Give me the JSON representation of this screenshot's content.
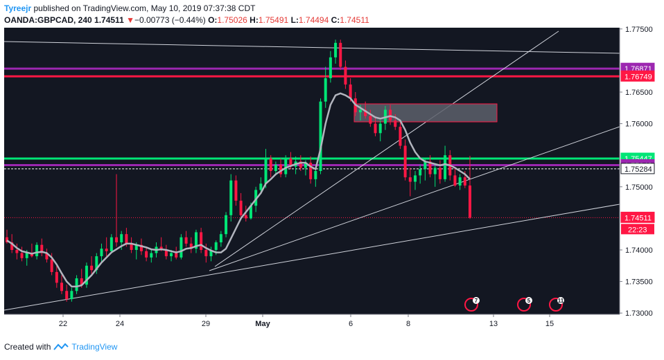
{
  "header": {
    "author": "Tyreejr",
    "published_text": " published on TradingView.com, May 10, 2019 07:37:38 CDT",
    "symbol": "OANDA:GBPCAD, 240",
    "last": "1.74511",
    "down_arrow": "▼",
    "change": "−0.00773 (−0.44%)",
    "open_label": "O:",
    "open": "1.75026",
    "high_label": "H:",
    "high": "1.75491",
    "low_label": "L:",
    "low": "1.74494",
    "close_label": "C:",
    "close": "1.74511"
  },
  "footer": {
    "created_with": "Created with",
    "brand": "TradingView"
  },
  "colors": {
    "background": "#131722",
    "up": "#00e676",
    "down": "#ff1744",
    "ma": "#b2b5be",
    "purple": "#9c27b0",
    "red_level": "#ff1744",
    "green_level": "#00e676",
    "trend": "#d1d4dc",
    "box": "#5d606b"
  },
  "chart_data": {
    "type": "candlestick",
    "ylim": [
      1.7298,
      1.7752
    ],
    "ytick_labels": [
      "1.77500",
      "1.76500",
      "1.76000",
      "1.75000",
      "1.74000",
      "1.73500",
      "1.73000"
    ],
    "ytick_values": [
      1.775,
      1.765,
      1.76,
      1.75,
      1.74,
      1.735,
      1.73
    ],
    "xtick_labels": [
      "22",
      "24",
      "29",
      "May",
      "6",
      "8",
      "13",
      "15"
    ],
    "price_labels": [
      {
        "text": "1.76871",
        "value": 1.76871,
        "color": "#9c27b0"
      },
      {
        "text": "1.76749",
        "value": 1.76749,
        "color": "#ff1744"
      },
      {
        "text": "1.75447",
        "value": 1.75447,
        "color": "#00e676"
      },
      {
        "text": "1.75343",
        "value": 1.75343,
        "color": "#9c27b0"
      },
      {
        "text": "1.75284",
        "value": 1.75284,
        "color": "#ffffff"
      },
      {
        "text": "1.74511",
        "value": 1.74511,
        "color": "#ff1744"
      }
    ],
    "countdown": "22:23",
    "horizontal_levels": [
      {
        "value": 1.76871,
        "color": "#9c27b0",
        "style": "solid"
      },
      {
        "value": 1.76749,
        "color": "#ff1744",
        "style": "solid"
      },
      {
        "value": 1.75447,
        "color": "#00e676",
        "style": "solid"
      },
      {
        "value": 1.75343,
        "color": "#9c27b0",
        "style": "solid"
      },
      {
        "value": 1.75284,
        "color": "#ffffff",
        "style": "dashed"
      },
      {
        "value": 1.74511,
        "color": "#ff1744",
        "style": "dotted"
      }
    ],
    "event_badges": [
      "7",
      "5",
      "11"
    ],
    "candles": [
      {
        "o": 1.742,
        "h": 1.7432,
        "l": 1.741,
        "c": 1.7412
      },
      {
        "o": 1.7412,
        "h": 1.7425,
        "l": 1.7395,
        "c": 1.74
      },
      {
        "o": 1.74,
        "h": 1.741,
        "l": 1.7385,
        "c": 1.7395
      },
      {
        "o": 1.7395,
        "h": 1.7405,
        "l": 1.7382,
        "c": 1.7387
      },
      {
        "o": 1.7387,
        "h": 1.74,
        "l": 1.7375,
        "c": 1.7395
      },
      {
        "o": 1.7395,
        "h": 1.741,
        "l": 1.7388,
        "c": 1.739
      },
      {
        "o": 1.739,
        "h": 1.7412,
        "l": 1.7385,
        "c": 1.7408
      },
      {
        "o": 1.7408,
        "h": 1.7418,
        "l": 1.739,
        "c": 1.7395
      },
      {
        "o": 1.7395,
        "h": 1.7402,
        "l": 1.738,
        "c": 1.7385
      },
      {
        "o": 1.7385,
        "h": 1.7395,
        "l": 1.736,
        "c": 1.7365
      },
      {
        "o": 1.7365,
        "h": 1.7375,
        "l": 1.734,
        "c": 1.7348
      },
      {
        "o": 1.7348,
        "h": 1.736,
        "l": 1.733,
        "c": 1.7335
      },
      {
        "o": 1.7335,
        "h": 1.7345,
        "l": 1.7318,
        "c": 1.7322
      },
      {
        "o": 1.7322,
        "h": 1.734,
        "l": 1.7318,
        "c": 1.7335
      },
      {
        "o": 1.7335,
        "h": 1.736,
        "l": 1.733,
        "c": 1.7355
      },
      {
        "o": 1.7355,
        "h": 1.737,
        "l": 1.734,
        "c": 1.7345
      },
      {
        "o": 1.7345,
        "h": 1.738,
        "l": 1.734,
        "c": 1.7375
      },
      {
        "o": 1.7375,
        "h": 1.739,
        "l": 1.7362,
        "c": 1.7368
      },
      {
        "o": 1.7368,
        "h": 1.7395,
        "l": 1.7362,
        "c": 1.739
      },
      {
        "o": 1.739,
        "h": 1.741,
        "l": 1.738,
        "c": 1.7402
      },
      {
        "o": 1.7402,
        "h": 1.742,
        "l": 1.739,
        "c": 1.7398
      },
      {
        "o": 1.7398,
        "h": 1.7425,
        "l": 1.7395,
        "c": 1.742
      },
      {
        "o": 1.742,
        "h": 1.752,
        "l": 1.7405,
        "c": 1.7412
      },
      {
        "o": 1.7412,
        "h": 1.743,
        "l": 1.74,
        "c": 1.7425
      },
      {
        "o": 1.7425,
        "h": 1.7435,
        "l": 1.7405,
        "c": 1.741
      },
      {
        "o": 1.741,
        "h": 1.742,
        "l": 1.7395,
        "c": 1.74
      },
      {
        "o": 1.74,
        "h": 1.7412,
        "l": 1.7385,
        "c": 1.7408
      },
      {
        "o": 1.7408,
        "h": 1.7418,
        "l": 1.7392,
        "c": 1.7398
      },
      {
        "o": 1.7398,
        "h": 1.7405,
        "l": 1.7382,
        "c": 1.7388
      },
      {
        "o": 1.7388,
        "h": 1.74,
        "l": 1.738,
        "c": 1.7395
      },
      {
        "o": 1.7395,
        "h": 1.7412,
        "l": 1.7388,
        "c": 1.7405
      },
      {
        "o": 1.7405,
        "h": 1.742,
        "l": 1.7398,
        "c": 1.74
      },
      {
        "o": 1.74,
        "h": 1.7408,
        "l": 1.7385,
        "c": 1.739
      },
      {
        "o": 1.739,
        "h": 1.74,
        "l": 1.7382,
        "c": 1.7395
      },
      {
        "o": 1.7395,
        "h": 1.7405,
        "l": 1.7385,
        "c": 1.7388
      },
      {
        "o": 1.7388,
        "h": 1.7425,
        "l": 1.7385,
        "c": 1.742
      },
      {
        "o": 1.742,
        "h": 1.743,
        "l": 1.7405,
        "c": 1.741
      },
      {
        "o": 1.741,
        "h": 1.742,
        "l": 1.7395,
        "c": 1.7402
      },
      {
        "o": 1.7402,
        "h": 1.7432,
        "l": 1.7395,
        "c": 1.7428
      },
      {
        "o": 1.7428,
        "h": 1.7435,
        "l": 1.7395,
        "c": 1.74
      },
      {
        "o": 1.74,
        "h": 1.741,
        "l": 1.738,
        "c": 1.739
      },
      {
        "o": 1.739,
        "h": 1.7405,
        "l": 1.7382,
        "c": 1.74
      },
      {
        "o": 1.74,
        "h": 1.7415,
        "l": 1.7392,
        "c": 1.7412
      },
      {
        "o": 1.7412,
        "h": 1.743,
        "l": 1.7405,
        "c": 1.7425
      },
      {
        "o": 1.7425,
        "h": 1.746,
        "l": 1.742,
        "c": 1.7455
      },
      {
        "o": 1.7455,
        "h": 1.752,
        "l": 1.7445,
        "c": 1.751
      },
      {
        "o": 1.751,
        "h": 1.7518,
        "l": 1.747,
        "c": 1.7478
      },
      {
        "o": 1.7478,
        "h": 1.749,
        "l": 1.745,
        "c": 1.7455
      },
      {
        "o": 1.7455,
        "h": 1.747,
        "l": 1.7445,
        "c": 1.745
      },
      {
        "o": 1.745,
        "h": 1.7475,
        "l": 1.7448,
        "c": 1.747
      },
      {
        "o": 1.747,
        "h": 1.75,
        "l": 1.746,
        "c": 1.7495
      },
      {
        "o": 1.7495,
        "h": 1.7515,
        "l": 1.749,
        "c": 1.7505
      },
      {
        "o": 1.7505,
        "h": 1.756,
        "l": 1.7498,
        "c": 1.7545
      },
      {
        "o": 1.7545,
        "h": 1.755,
        "l": 1.7515,
        "c": 1.7525
      },
      {
        "o": 1.7525,
        "h": 1.754,
        "l": 1.7518,
        "c": 1.7535
      },
      {
        "o": 1.7535,
        "h": 1.7545,
        "l": 1.7515,
        "c": 1.752
      },
      {
        "o": 1.752,
        "h": 1.755,
        "l": 1.7515,
        "c": 1.7545
      },
      {
        "o": 1.7545,
        "h": 1.7555,
        "l": 1.7528,
        "c": 1.7532
      },
      {
        "o": 1.7532,
        "h": 1.7548,
        "l": 1.752,
        "c": 1.754
      },
      {
        "o": 1.754,
        "h": 1.755,
        "l": 1.7525,
        "c": 1.753
      },
      {
        "o": 1.753,
        "h": 1.7542,
        "l": 1.7518,
        "c": 1.7538
      },
      {
        "o": 1.7538,
        "h": 1.7548,
        "l": 1.7505,
        "c": 1.7512
      },
      {
        "o": 1.7512,
        "h": 1.753,
        "l": 1.75,
        "c": 1.7525
      },
      {
        "o": 1.7525,
        "h": 1.764,
        "l": 1.752,
        "c": 1.7635
      },
      {
        "o": 1.7635,
        "h": 1.769,
        "l": 1.7625,
        "c": 1.7672
      },
      {
        "o": 1.7672,
        "h": 1.7715,
        "l": 1.7665,
        "c": 1.7705
      },
      {
        "o": 1.7705,
        "h": 1.7733,
        "l": 1.7695,
        "c": 1.7728
      },
      {
        "o": 1.7728,
        "h": 1.7733,
        "l": 1.7685,
        "c": 1.769
      },
      {
        "o": 1.769,
        "h": 1.77,
        "l": 1.7655,
        "c": 1.7662
      },
      {
        "o": 1.7662,
        "h": 1.7672,
        "l": 1.7635,
        "c": 1.764
      },
      {
        "o": 1.764,
        "h": 1.765,
        "l": 1.7612,
        "c": 1.7618
      },
      {
        "o": 1.7618,
        "h": 1.763,
        "l": 1.7605,
        "c": 1.7622
      },
      {
        "o": 1.7622,
        "h": 1.7635,
        "l": 1.7608,
        "c": 1.7612
      },
      {
        "o": 1.7612,
        "h": 1.7622,
        "l": 1.7595,
        "c": 1.76
      },
      {
        "o": 1.76,
        "h": 1.7612,
        "l": 1.758,
        "c": 1.7585
      },
      {
        "o": 1.7585,
        "h": 1.7605,
        "l": 1.7572,
        "c": 1.76
      },
      {
        "o": 1.76,
        "h": 1.7628,
        "l": 1.759,
        "c": 1.7622
      },
      {
        "o": 1.7622,
        "h": 1.763,
        "l": 1.7598,
        "c": 1.7605
      },
      {
        "o": 1.7605,
        "h": 1.7615,
        "l": 1.759,
        "c": 1.7595
      },
      {
        "o": 1.7595,
        "h": 1.7602,
        "l": 1.756,
        "c": 1.7565
      },
      {
        "o": 1.7565,
        "h": 1.7575,
        "l": 1.751,
        "c": 1.7515
      },
      {
        "o": 1.7515,
        "h": 1.753,
        "l": 1.7485,
        "c": 1.7508
      },
      {
        "o": 1.7508,
        "h": 1.7525,
        "l": 1.7495,
        "c": 1.7518
      },
      {
        "o": 1.7518,
        "h": 1.7535,
        "l": 1.7505,
        "c": 1.7528
      },
      {
        "o": 1.7528,
        "h": 1.7545,
        "l": 1.751,
        "c": 1.754
      },
      {
        "o": 1.754,
        "h": 1.755,
        "l": 1.7515,
        "c": 1.752
      },
      {
        "o": 1.752,
        "h": 1.7535,
        "l": 1.75,
        "c": 1.753
      },
      {
        "o": 1.753,
        "h": 1.7542,
        "l": 1.7505,
        "c": 1.7512
      },
      {
        "o": 1.7512,
        "h": 1.7565,
        "l": 1.7508,
        "c": 1.755
      },
      {
        "o": 1.755,
        "h": 1.7558,
        "l": 1.751,
        "c": 1.7518
      },
      {
        "o": 1.7518,
        "h": 1.753,
        "l": 1.75,
        "c": 1.7502
      },
      {
        "o": 1.7502,
        "h": 1.752,
        "l": 1.7495,
        "c": 1.7515
      },
      {
        "o": 1.7515,
        "h": 1.7525,
        "l": 1.7498,
        "c": 1.7502
      },
      {
        "o": 1.7502,
        "h": 1.7549,
        "l": 1.7449,
        "c": 1.7451
      }
    ],
    "ma_points": [
      1.7415,
      1.741,
      1.7403,
      1.7398,
      1.7396,
      1.7394,
      1.7396,
      1.7397,
      1.7395,
      1.7388,
      1.7377,
      1.7363,
      1.735,
      1.7342,
      1.7342,
      1.7344,
      1.7352,
      1.736,
      1.737,
      1.738,
      1.7388,
      1.7396,
      1.7401,
      1.7406,
      1.741,
      1.741,
      1.7408,
      1.7406,
      1.7404,
      1.7401,
      1.74,
      1.7401,
      1.74,
      1.7398,
      1.7396,
      1.7398,
      1.7402,
      1.7403,
      1.7406,
      1.7408,
      1.7403,
      1.7399,
      1.7396,
      1.7396,
      1.7402,
      1.7418,
      1.7434,
      1.745,
      1.746,
      1.747,
      1.748,
      1.749,
      1.7505,
      1.7512,
      1.752,
      1.7525,
      1.753,
      1.7533,
      1.7536,
      1.7538,
      1.7538,
      1.7532,
      1.7528,
      1.756,
      1.76,
      1.763,
      1.7645,
      1.7648,
      1.7645,
      1.764,
      1.763,
      1.7625,
      1.762,
      1.7615,
      1.761,
      1.7608,
      1.761,
      1.7612,
      1.761,
      1.7605,
      1.759,
      1.757,
      1.7555,
      1.7545,
      1.754,
      1.7538,
      1.7536,
      1.7534,
      1.7536,
      1.7534,
      1.753,
      1.7525,
      1.752,
      1.7512
    ]
  }
}
